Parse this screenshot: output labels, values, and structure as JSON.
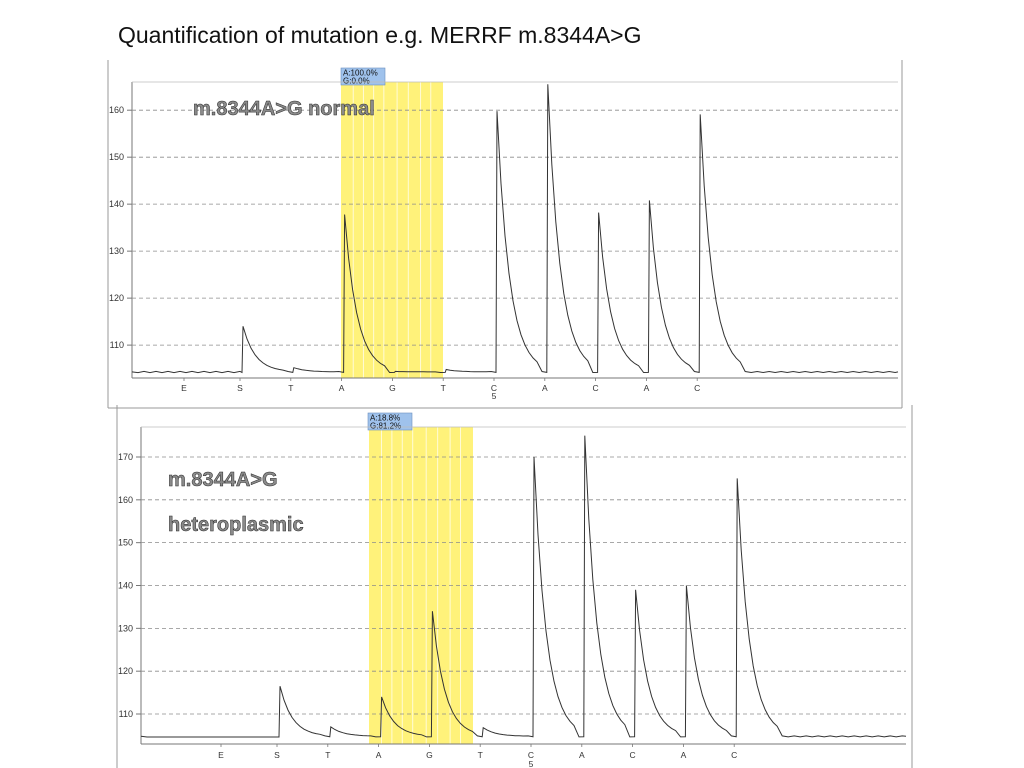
{
  "title": "Quantification of mutation e.g. MERRF m.8344A>G",
  "chart_data": [
    {
      "type": "line",
      "labels": [
        "m.8344A>G normal"
      ],
      "quant_labels": [
        "A:100.0%",
        "G:0.0%"
      ],
      "y_ticks": [
        110,
        120,
        130,
        140,
        150,
        160
      ],
      "ylim": [
        103,
        166
      ],
      "grid": true,
      "x_axis": {
        "bases": [
          "E",
          "S",
          "T",
          "A",
          "G",
          "T",
          "C",
          "A",
          "C",
          "A",
          "C"
        ],
        "position_label": "5"
      },
      "highlight": {
        "from_base": "A",
        "to_base": "G",
        "color": "#fff27a"
      },
      "series": [
        {
          "baseline": 104.3,
          "peaks": [
            {
              "dispensation": "S",
              "height": 114.0
            },
            {
              "dispensation": "T",
              "height": 105.2
            },
            {
              "dispensation": "A",
              "height": 137.8
            },
            {
              "dispensation": "G",
              "height": 104.4
            },
            {
              "dispensation": "T",
              "height": 104.8
            },
            {
              "dispensation": "C",
              "height": 159.8
            },
            {
              "dispensation": "A",
              "height": 165.5
            },
            {
              "dispensation": "C",
              "height": 138.2
            },
            {
              "dispensation": "A",
              "height": 140.8
            },
            {
              "dispensation": "C",
              "height": 159.1
            }
          ]
        }
      ]
    },
    {
      "type": "line",
      "labels": [
        "m.8344A>G",
        "heteroplasmic"
      ],
      "quant_labels": [
        "A:18.8%",
        "G:81.2%"
      ],
      "y_ticks": [
        110,
        120,
        130,
        140,
        150,
        160,
        170
      ],
      "ylim": [
        103,
        177
      ],
      "grid": true,
      "x_axis": {
        "bases": [
          "E",
          "S",
          "T",
          "A",
          "G",
          "T",
          "C",
          "A",
          "C",
          "A",
          "C"
        ],
        "position_label": "5"
      },
      "highlight": {
        "from_base": "A",
        "to_base": "G",
        "color": "#fff27a"
      },
      "series": [
        {
          "baseline": 104.8,
          "peaks": [
            {
              "dispensation": "S",
              "height": 116.5
            },
            {
              "dispensation": "T",
              "height": 107.0
            },
            {
              "dispensation": "A",
              "height": 114.0
            },
            {
              "dispensation": "G",
              "height": 134.0
            },
            {
              "dispensation": "T",
              "height": 106.8
            },
            {
              "dispensation": "C",
              "height": 170.0
            },
            {
              "dispensation": "A",
              "height": 175.0
            },
            {
              "dispensation": "C",
              "height": 139.0
            },
            {
              "dispensation": "A",
              "height": 140.0
            },
            {
              "dispensation": "C",
              "height": 165.0
            }
          ]
        }
      ]
    }
  ]
}
